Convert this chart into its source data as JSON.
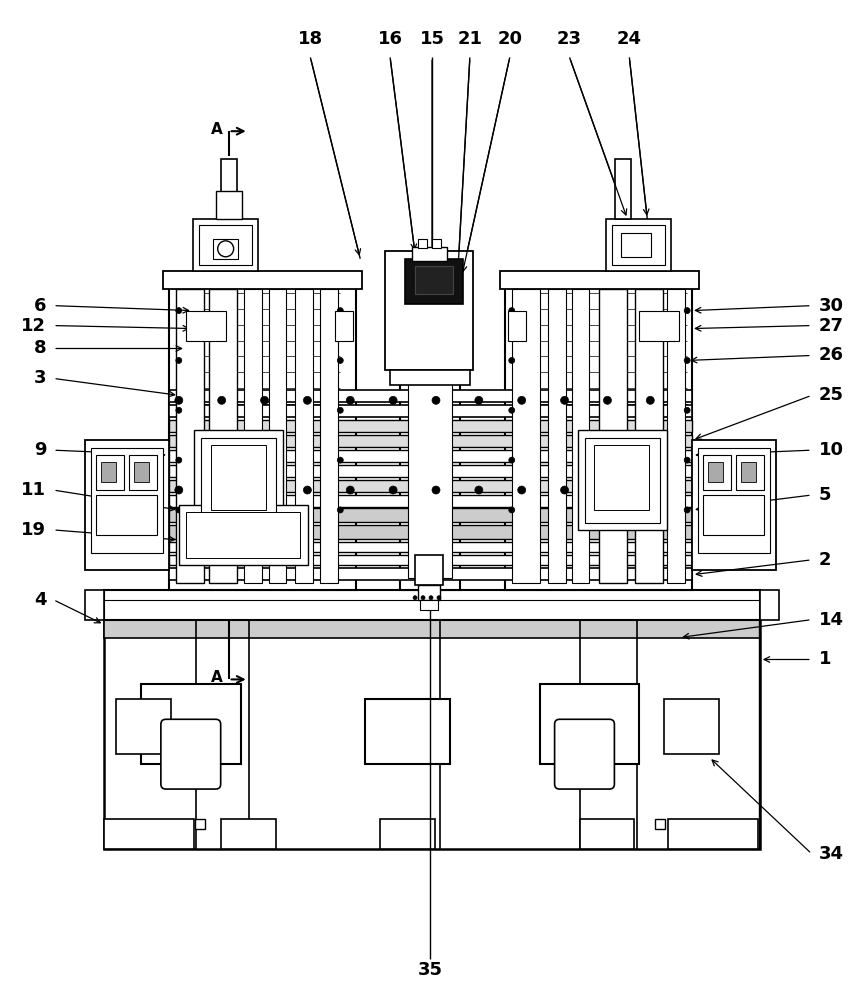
{
  "bg_color": "#ffffff",
  "lc": "#000000",
  "fs_label": 13,
  "fw": "bold",
  "fig_w": 8.61,
  "fig_h": 10.0
}
